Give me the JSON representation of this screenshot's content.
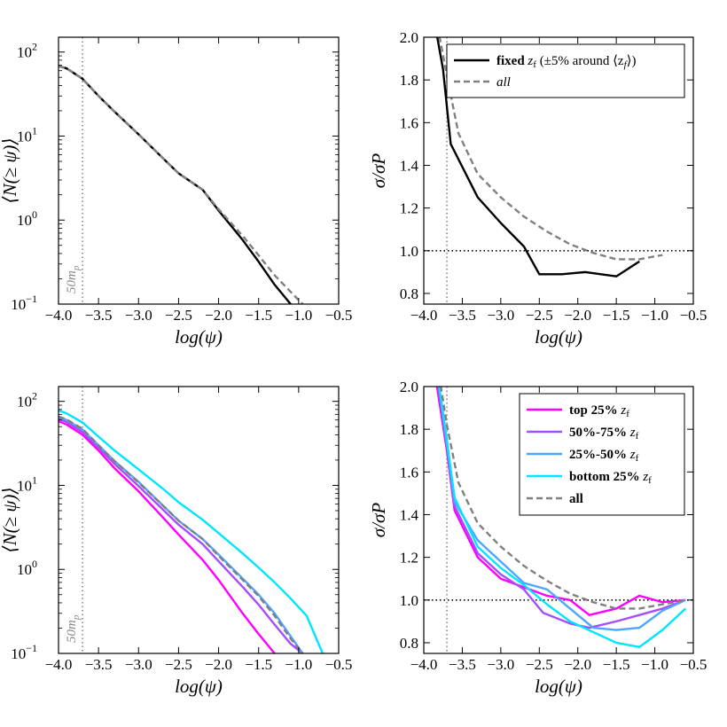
{
  "chart_data": [
    {
      "type": "line",
      "panel": "top-left",
      "xlabel": "log(ψ)",
      "ylabel": "⟨N(≥ ψ)⟩",
      "xlim": [
        -4.0,
        -0.5
      ],
      "ylim": [
        0.1,
        150
      ],
      "yscale": "log",
      "x_ticks": [
        "−4.0",
        "−3.5",
        "−3.0",
        "−2.5",
        "−2.0",
        "−1.5",
        "−1.0",
        "−0.5"
      ],
      "y_ticks": [
        "10",
        "10",
        "10",
        "10"
      ],
      "y_tick_exps": [
        "−1",
        "0",
        "1",
        "2"
      ],
      "vline": {
        "x": -3.7,
        "label": "50m",
        "sub": "p"
      },
      "series": [
        {
          "name": "fixed",
          "color": "#000000",
          "style": "solid",
          "x": [
            -4.0,
            -3.9,
            -3.7,
            -3.5,
            -3.3,
            -3.0,
            -2.7,
            -2.5,
            -2.2,
            -2.0,
            -1.7,
            -1.5,
            -1.3,
            -1.1
          ],
          "y": [
            68,
            64,
            48,
            30,
            19.5,
            10.5,
            5.5,
            3.6,
            2.3,
            1.3,
            0.58,
            0.32,
            0.17,
            0.1
          ]
        },
        {
          "name": "all",
          "color": "#808080",
          "style": "dashed",
          "x": [
            -4.0,
            -3.9,
            -3.7,
            -3.5,
            -3.3,
            -3.0,
            -2.7,
            -2.5,
            -2.2,
            -2.0,
            -1.7,
            -1.5,
            -1.3,
            -1.1,
            -0.95
          ],
          "y": [
            68,
            64,
            48,
            30,
            19.5,
            10.5,
            5.5,
            3.6,
            2.3,
            1.35,
            0.65,
            0.38,
            0.22,
            0.14,
            0.1
          ]
        }
      ]
    },
    {
      "type": "line",
      "panel": "top-right",
      "xlabel": "log(ψ)",
      "ylabel": "σ/σP",
      "xlim": [
        -4.0,
        -0.5
      ],
      "ylim": [
        0.75,
        2.0
      ],
      "x_ticks": [
        "−4.0",
        "−3.5",
        "−3.0",
        "−2.5",
        "−2.0",
        "−1.5",
        "−1.0",
        "−0.5"
      ],
      "y_ticks": [
        "0.8",
        "1.0",
        "1.2",
        "1.4",
        "1.6",
        "1.8",
        "2.0"
      ],
      "hline": 1.0,
      "vline": {
        "x": -3.7
      },
      "legend": {
        "placement": "top-right",
        "entries": [
          {
            "bold": "fixed",
            "rest": " z",
            "sub": "f",
            "tail": " (±5% around ⟨z",
            "tail_sub": "f",
            "tail_end": "⟩)"
          },
          {
            "bold": "",
            "rest": "all",
            "sub": "",
            "tail": "",
            "tail_sub": "",
            "tail_end": ""
          }
        ]
      },
      "series": [
        {
          "name": "fixed zf (±5% around ⟨zf⟩)",
          "color": "#000000",
          "style": "solid",
          "x": [
            -3.85,
            -3.75,
            -3.65,
            -3.3,
            -3.0,
            -2.7,
            -2.5,
            -2.2,
            -1.9,
            -1.5,
            -1.2
          ],
          "y": [
            2.05,
            1.85,
            1.5,
            1.25,
            1.13,
            1.02,
            0.89,
            0.89,
            0.9,
            0.88,
            0.95
          ]
        },
        {
          "name": "all",
          "color": "#808080",
          "style": "dashed",
          "x": [
            -3.82,
            -3.7,
            -3.55,
            -3.3,
            -3.0,
            -2.7,
            -2.4,
            -2.1,
            -1.8,
            -1.5,
            -1.2,
            -0.9
          ],
          "y": [
            2.05,
            1.82,
            1.55,
            1.36,
            1.25,
            1.16,
            1.09,
            1.03,
            0.99,
            0.96,
            0.96,
            0.98
          ]
        }
      ]
    },
    {
      "type": "line",
      "panel": "bottom-left",
      "xlabel": "log(ψ)",
      "ylabel": "⟨N(≥ ψ)⟩",
      "xlim": [
        -4.0,
        -0.5
      ],
      "ylim": [
        0.1,
        150
      ],
      "yscale": "log",
      "x_ticks": [
        "−4.0",
        "−3.5",
        "−3.0",
        "−2.5",
        "−2.0",
        "−1.5",
        "−1.0",
        "−0.5"
      ],
      "y_ticks": [
        "10",
        "10",
        "10",
        "10"
      ],
      "y_tick_exps": [
        "−1",
        "0",
        "1",
        "2"
      ],
      "vline": {
        "x": -3.7,
        "label": "50m",
        "sub": "p"
      },
      "series": [
        {
          "name": "top 25% zf",
          "color": "#ff00ff",
          "style": "solid",
          "x": [
            -4.0,
            -3.9,
            -3.7,
            -3.5,
            -3.3,
            -3.0,
            -2.7,
            -2.5,
            -2.2,
            -2.0,
            -1.7,
            -1.5,
            -1.3
          ],
          "y": [
            58,
            53,
            40,
            26,
            16,
            8.5,
            4.2,
            2.6,
            1.3,
            0.75,
            0.3,
            0.17,
            0.1
          ]
        },
        {
          "name": "50%-75% zf",
          "color": "#a64dff",
          "style": "solid",
          "x": [
            -4.0,
            -3.9,
            -3.7,
            -3.5,
            -3.3,
            -3.0,
            -2.7,
            -2.5,
            -2.2,
            -2.0,
            -1.7,
            -1.5,
            -1.3,
            -1.1,
            -0.95
          ],
          "y": [
            62,
            57,
            43,
            28,
            18,
            9.8,
            5.2,
            3.4,
            2.0,
            1.25,
            0.62,
            0.38,
            0.22,
            0.13,
            0.1
          ]
        },
        {
          "name": "25%-50% zf",
          "color": "#4da6ff",
          "style": "solid",
          "x": [
            -4.0,
            -3.9,
            -3.7,
            -3.5,
            -3.3,
            -3.0,
            -2.7,
            -2.5,
            -2.2,
            -2.0,
            -1.7,
            -1.5,
            -1.3,
            -1.1,
            -0.95
          ],
          "y": [
            65,
            60,
            46,
            30,
            19.5,
            11,
            5.8,
            3.8,
            2.3,
            1.5,
            0.78,
            0.5,
            0.3,
            0.16,
            0.1
          ]
        },
        {
          "name": "bottom 25% zf",
          "color": "#00e5ff",
          "style": "solid",
          "x": [
            -4.0,
            -3.9,
            -3.7,
            -3.5,
            -3.3,
            -3.0,
            -2.7,
            -2.5,
            -2.2,
            -2.0,
            -1.7,
            -1.5,
            -1.3,
            -1.1,
            -0.9,
            -0.7
          ],
          "y": [
            78,
            72,
            56,
            38,
            26,
            15.5,
            9.2,
            6.3,
            3.9,
            2.7,
            1.55,
            1.05,
            0.7,
            0.45,
            0.28,
            0.1
          ]
        },
        {
          "name": "all",
          "color": "#808080",
          "style": "dashed",
          "x": [
            -4.0,
            -3.9,
            -3.7,
            -3.5,
            -3.3,
            -3.0,
            -2.7,
            -2.5,
            -2.2,
            -2.0,
            -1.7,
            -1.5,
            -1.3,
            -1.1,
            -0.95
          ],
          "y": [
            66,
            61,
            47,
            30,
            19.5,
            10.8,
            5.8,
            3.8,
            2.3,
            1.45,
            0.75,
            0.48,
            0.28,
            0.15,
            0.1
          ]
        }
      ]
    },
    {
      "type": "line",
      "panel": "bottom-right",
      "xlabel": "log(ψ)",
      "ylabel": "σ/σP",
      "xlim": [
        -4.0,
        -0.5
      ],
      "ylim": [
        0.75,
        2.0
      ],
      "x_ticks": [
        "−4.0",
        "−3.5",
        "−3.0",
        "−2.5",
        "−2.0",
        "−1.5",
        "−1.0",
        "−0.5"
      ],
      "y_ticks": [
        "0.8",
        "1.0",
        "1.2",
        "1.4",
        "1.6",
        "1.8",
        "2.0"
      ],
      "hline": 1.0,
      "vline": {
        "x": -3.7
      },
      "legend": {
        "placement": "top-right",
        "entries": [
          {
            "bold": "top 25%",
            "rest": " z",
            "sub": "f"
          },
          {
            "bold": "50%-75%",
            "rest": " z",
            "sub": "f"
          },
          {
            "bold": "25%-50%",
            "rest": " z",
            "sub": "f"
          },
          {
            "bold": "bottom 25%",
            "rest": " z",
            "sub": "f"
          },
          {
            "bold": "all",
            "rest": "",
            "sub": ""
          }
        ]
      },
      "series": [
        {
          "name": "top 25% zf",
          "color": "#ff00ff",
          "style": "solid",
          "x": [
            -3.85,
            -3.7,
            -3.6,
            -3.3,
            -3.0,
            -2.7,
            -2.4,
            -2.1,
            -1.85,
            -1.5,
            -1.2,
            -0.9,
            -0.6
          ],
          "y": [
            2.05,
            1.7,
            1.42,
            1.2,
            1.1,
            1.06,
            1.02,
            1.0,
            0.93,
            0.96,
            1.02,
            0.99,
            1.0
          ]
        },
        {
          "name": "50%-75% zf",
          "color": "#a64dff",
          "style": "solid",
          "x": [
            -3.83,
            -3.7,
            -3.6,
            -3.3,
            -3.0,
            -2.7,
            -2.45,
            -2.1,
            -1.85,
            -1.5,
            -1.2,
            -0.9,
            -0.6
          ],
          "y": [
            2.05,
            1.72,
            1.44,
            1.22,
            1.12,
            1.05,
            0.94,
            0.89,
            0.87,
            0.9,
            0.93,
            0.96,
            1.0
          ]
        },
        {
          "name": "25%-50% zf",
          "color": "#4da6ff",
          "style": "solid",
          "x": [
            -3.82,
            -3.7,
            -3.6,
            -3.3,
            -3.0,
            -2.7,
            -2.4,
            -2.1,
            -1.8,
            -1.5,
            -1.2,
            -0.9,
            -0.6
          ],
          "y": [
            2.05,
            1.75,
            1.46,
            1.28,
            1.18,
            1.08,
            1.05,
            0.96,
            0.87,
            0.86,
            0.87,
            0.95,
            1.0
          ]
        },
        {
          "name": "bottom 25% zf",
          "color": "#00e5ff",
          "style": "solid",
          "x": [
            -3.82,
            -3.7,
            -3.6,
            -3.3,
            -3.0,
            -2.7,
            -2.4,
            -2.1,
            -1.8,
            -1.5,
            -1.2,
            -0.9,
            -0.6
          ],
          "y": [
            2.05,
            1.74,
            1.48,
            1.25,
            1.15,
            1.07,
            0.98,
            0.9,
            0.85,
            0.8,
            0.78,
            0.86,
            0.96
          ]
        },
        {
          "name": "all",
          "color": "#808080",
          "style": "dashed",
          "x": [
            -3.8,
            -3.7,
            -3.55,
            -3.3,
            -3.0,
            -2.7,
            -2.4,
            -2.1,
            -1.8,
            -1.5,
            -1.2,
            -0.9,
            -0.6
          ],
          "y": [
            2.05,
            1.82,
            1.55,
            1.36,
            1.25,
            1.16,
            1.09,
            1.03,
            0.99,
            0.96,
            0.96,
            0.98,
            1.0
          ]
        }
      ]
    }
  ]
}
